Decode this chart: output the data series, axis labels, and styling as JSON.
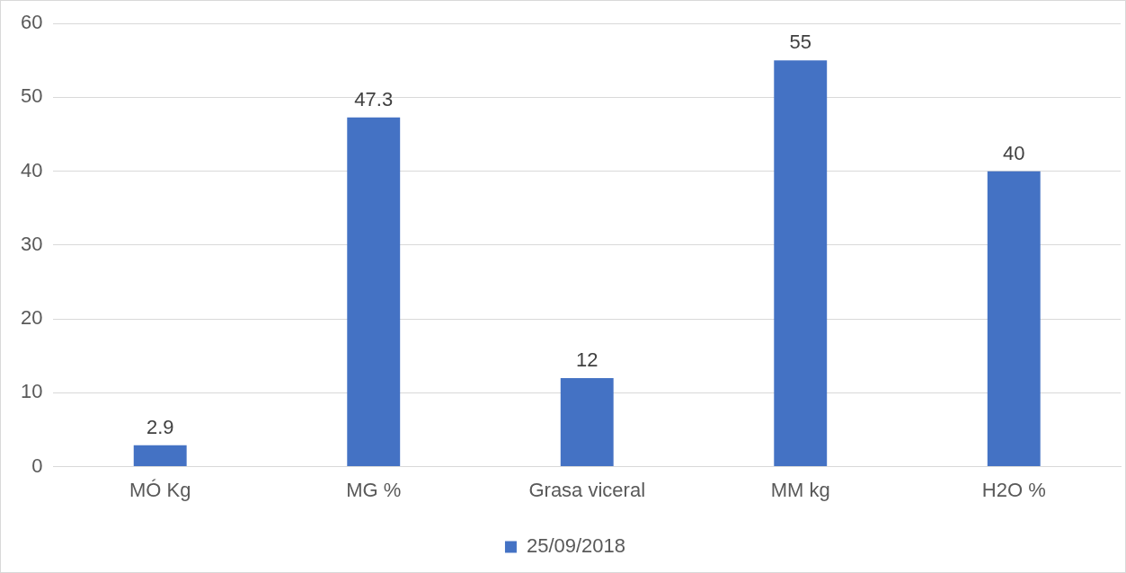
{
  "chart_data": {
    "type": "bar",
    "categories": [
      "MÓ Kg",
      "MG %",
      "Grasa viceral",
      "MM kg",
      "H2O %"
    ],
    "series": [
      {
        "name": "25/09/2018",
        "color": "#4472c4",
        "values": [
          2.9,
          47.3,
          12,
          55,
          40
        ]
      }
    ],
    "ylim": [
      0,
      60
    ],
    "yticks": [
      0,
      10,
      20,
      30,
      40,
      50,
      60
    ],
    "grid": "y",
    "legend": "bottom",
    "data_labels": true
  }
}
